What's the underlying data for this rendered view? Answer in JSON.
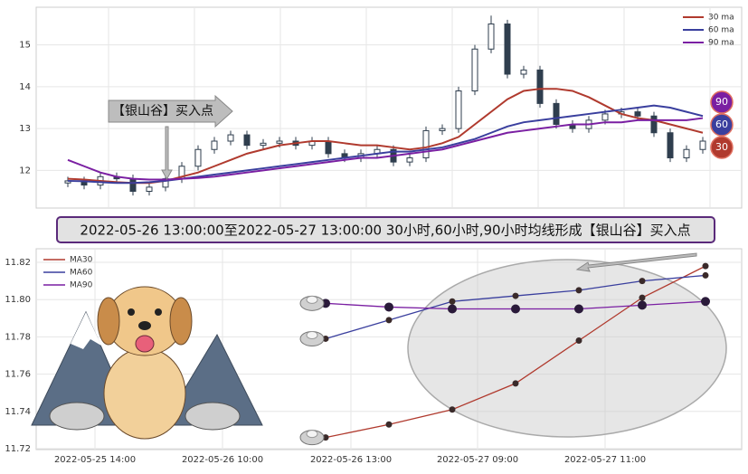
{
  "chart_data": [
    {
      "type": "candlestick",
      "annotation": "【银山谷】买入点",
      "badges": [
        "90",
        "60",
        "30"
      ],
      "ylim": [
        11.1,
        15.9
      ],
      "yticks": [
        12,
        13,
        14,
        15
      ],
      "grid": true,
      "legend": "upper right",
      "color": "#2f3e4e",
      "open": [
        11.7,
        11.75,
        11.65,
        11.85,
        11.8,
        11.5,
        11.6,
        11.8,
        12.1,
        12.5,
        12.7,
        12.85,
        12.6,
        12.65,
        12.7,
        12.6,
        12.7,
        12.4,
        12.3,
        12.4,
        12.5,
        12.2,
        12.3,
        12.95,
        13.0,
        13.9,
        14.9,
        15.5,
        14.3,
        14.4,
        13.6,
        13.1,
        13.0,
        13.2,
        13.35,
        13.4,
        13.3,
        12.9,
        12.3,
        12.5
      ],
      "high": [
        11.85,
        11.85,
        11.95,
        11.95,
        11.9,
        11.7,
        11.9,
        12.2,
        12.6,
        12.8,
        12.95,
        12.95,
        12.75,
        12.8,
        12.8,
        12.8,
        12.8,
        12.5,
        12.5,
        12.6,
        12.6,
        12.4,
        13.05,
        13.1,
        14.0,
        15.0,
        15.7,
        15.6,
        14.5,
        14.5,
        13.7,
        13.2,
        13.3,
        13.45,
        13.5,
        13.5,
        13.4,
        13.0,
        12.6,
        12.8
      ],
      "low": [
        11.6,
        11.55,
        11.55,
        11.7,
        11.4,
        11.4,
        11.5,
        11.7,
        12.0,
        12.4,
        12.6,
        12.5,
        12.5,
        12.55,
        12.5,
        12.5,
        12.3,
        12.2,
        12.2,
        12.3,
        12.1,
        12.1,
        12.2,
        12.85,
        12.9,
        13.8,
        14.8,
        14.2,
        14.2,
        13.5,
        13.0,
        12.9,
        12.9,
        13.1,
        13.25,
        13.2,
        12.8,
        12.2,
        12.2,
        12.4
      ],
      "close": [
        11.75,
        11.65,
        11.85,
        11.8,
        11.5,
        11.6,
        11.8,
        12.1,
        12.5,
        12.7,
        12.85,
        12.6,
        12.65,
        12.7,
        12.6,
        12.7,
        12.4,
        12.3,
        12.4,
        12.5,
        12.2,
        12.3,
        12.95,
        13.0,
        13.9,
        14.9,
        15.5,
        14.3,
        14.4,
        13.6,
        13.1,
        13.0,
        13.2,
        13.35,
        13.4,
        13.3,
        12.9,
        12.3,
        12.5,
        12.7
      ],
      "series": [
        {
          "name": "30 ma",
          "color": "#b03a2e",
          "values": [
            11.8,
            11.78,
            11.75,
            11.72,
            11.7,
            11.7,
            11.75,
            11.85,
            11.95,
            12.1,
            12.25,
            12.4,
            12.5,
            12.6,
            12.65,
            12.7,
            12.7,
            12.65,
            12.6,
            12.6,
            12.55,
            12.5,
            12.55,
            12.65,
            12.8,
            13.1,
            13.4,
            13.7,
            13.9,
            13.95,
            13.95,
            13.9,
            13.75,
            13.55,
            13.35,
            13.25,
            13.2,
            13.1,
            13.0,
            12.9
          ]
        },
        {
          "name": "60 ma",
          "color": "#3a3f9e",
          "values": [
            11.75,
            11.74,
            11.72,
            11.7,
            11.7,
            11.72,
            11.75,
            11.8,
            11.85,
            11.9,
            11.95,
            12.0,
            12.05,
            12.1,
            12.15,
            12.2,
            12.25,
            12.3,
            12.35,
            12.4,
            12.45,
            12.45,
            12.5,
            12.55,
            12.65,
            12.75,
            12.9,
            13.05,
            13.15,
            13.2,
            13.25,
            13.3,
            13.35,
            13.4,
            13.45,
            13.5,
            13.55,
            13.5,
            13.4,
            13.3
          ]
        },
        {
          "name": "90 ma",
          "color": "#7a1fa2",
          "values": [
            12.25,
            12.1,
            11.95,
            11.85,
            11.8,
            11.78,
            11.78,
            11.8,
            11.82,
            11.85,
            11.9,
            11.95,
            12.0,
            12.05,
            12.1,
            12.15,
            12.2,
            12.25,
            12.3,
            12.3,
            12.35,
            12.4,
            12.45,
            12.5,
            12.6,
            12.7,
            12.8,
            12.9,
            12.95,
            13.0,
            13.05,
            13.1,
            13.1,
            13.15,
            13.15,
            13.2,
            13.2,
            13.2,
            13.2,
            13.25
          ]
        }
      ]
    },
    {
      "type": "line",
      "title": "2022-05-26 13:00:00至2022-05-27 13:00:00 30小时,60小时,90小时均线形成【银山谷】买入点",
      "xtick_labels": [
        "2022-05-25 14:00",
        "2022-05-26 10:00",
        "2022-05-26 13:00",
        "2022-05-27 09:00",
        "2022-05-27 11:00"
      ],
      "ylim": [
        11.72,
        11.82
      ],
      "yticks": [
        {
          "value": 11.72,
          "label": "11.72"
        },
        {
          "value": 11.74,
          "label": "11.74"
        },
        {
          "value": 11.76,
          "label": "11.76"
        },
        {
          "value": 11.78,
          "label": "11.78"
        },
        {
          "value": 11.8,
          "label": "11.80"
        },
        {
          "value": 11.82,
          "label": "11.82"
        }
      ],
      "grid": true,
      "legend": "upper left",
      "series": [
        {
          "name": "MA30",
          "color": "#b03a2e",
          "values": [
            11.726,
            11.733,
            11.741,
            11.755,
            11.778,
            11.801,
            11.818
          ]
        },
        {
          "name": "MA60",
          "color": "#3a3f9e",
          "values": [
            11.779,
            11.789,
            11.799,
            11.802,
            11.805,
            11.81,
            11.813
          ]
        },
        {
          "name": "MA90",
          "color": "#7a1fa2",
          "values": [
            11.798,
            11.796,
            11.795,
            11.795,
            11.795,
            11.797,
            11.799
          ]
        }
      ]
    }
  ]
}
